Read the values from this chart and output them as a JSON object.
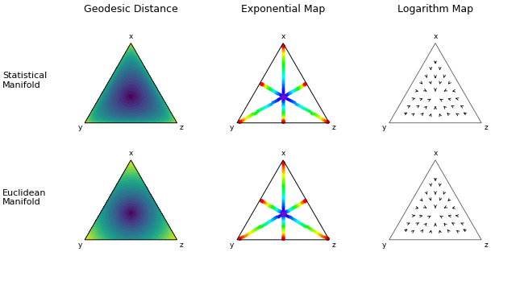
{
  "title_col1": "Geodesic Distance",
  "title_col2": "Exponential Map",
  "title_col3": "Logarithm Map",
  "row1_label": "Statistical\nManifold",
  "row2_label": "Euclidean\nManifold",
  "vertex_labels": [
    "x",
    "y",
    "z"
  ],
  "col_title_fontsize": 9,
  "row_label_fontsize": 8,
  "vertex_fontsize": 6.5
}
